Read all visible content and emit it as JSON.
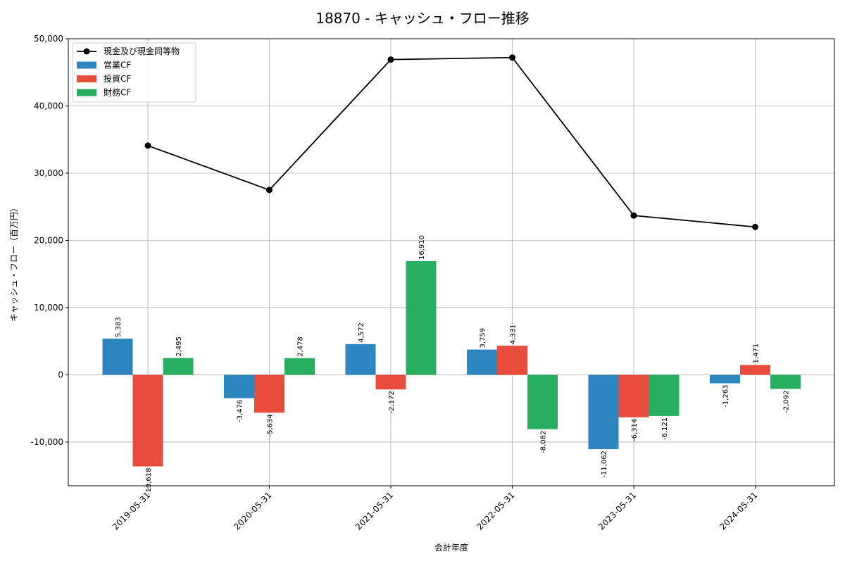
{
  "chart_data": {
    "type": "bar",
    "title": "18870 - キャッシュ・フロー推移",
    "xlabel": "会計年度",
    "ylabel": "キャッシュ・フロー（百万円）",
    "categories": [
      "2019-05-31",
      "2020-05-31",
      "2021-05-31",
      "2022-05-31",
      "2023-05-31",
      "2024-05-31"
    ],
    "ylim": [
      -16500,
      50000
    ],
    "yticks": [
      -10000,
      0,
      10000,
      20000,
      30000,
      40000,
      50000
    ],
    "ytick_labels": [
      "-10,000",
      "0",
      "10,000",
      "20,000",
      "30,000",
      "40,000",
      "50,000"
    ],
    "grid": true,
    "legend_position": "top-left",
    "series": [
      {
        "name": "営業CF",
        "kind": "bar",
        "color": "#2e86c1",
        "values": [
          5383,
          -3476,
          4572,
          3759,
          -11062,
          -1263
        ],
        "labels": [
          "5,383",
          "-3,476",
          "4,572",
          "3,759",
          "-11,062",
          "-1,263"
        ]
      },
      {
        "name": "投資CF",
        "kind": "bar",
        "color": "#e74c3c",
        "values": [
          -13618,
          -5634,
          -2172,
          4331,
          -6314,
          1471
        ],
        "labels": [
          "-13,618",
          "-5,634",
          "-2,172",
          "4,331",
          "-6,314",
          "1,471"
        ]
      },
      {
        "name": "財務CF",
        "kind": "bar",
        "color": "#27ae60",
        "values": [
          2495,
          2478,
          16910,
          -8082,
          -6121,
          -2092
        ],
        "labels": [
          "2,495",
          "2,478",
          "16,910",
          "-8,082",
          "-6,121",
          "-2,092"
        ]
      },
      {
        "name": "現金及び現金同等物",
        "kind": "line",
        "color": "#000000",
        "values": [
          34100,
          27500,
          46900,
          47200,
          23700,
          22000
        ]
      }
    ]
  }
}
